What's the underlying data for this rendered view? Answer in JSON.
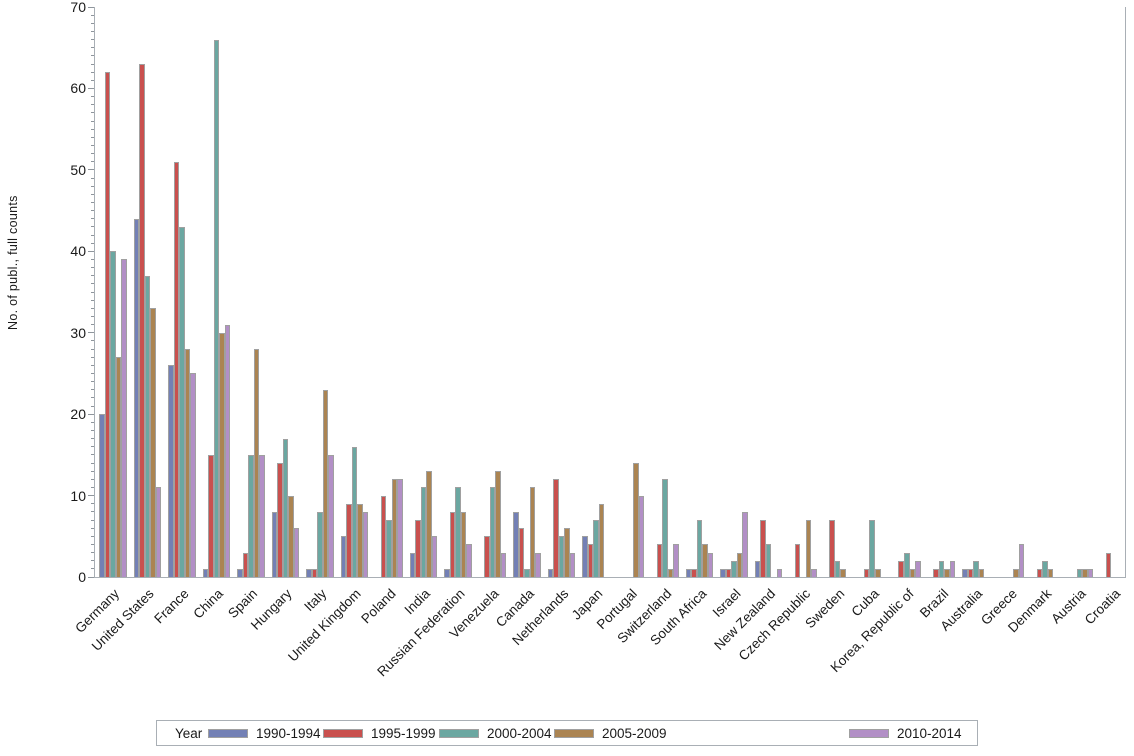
{
  "chart_data": {
    "type": "bar",
    "title": "",
    "xlabel": "",
    "ylabel": "No. of publ., full counts",
    "ylim": [
      0,
      70
    ],
    "ytick_step": 10,
    "ytick_minor_step": 1,
    "grid": "off",
    "legend_title": "Year",
    "legend_position": "bottom",
    "frame_color": "#a9afb5",
    "bar_border_color": "#a0a0a0",
    "categories": [
      "Germany",
      "United States",
      "France",
      "China",
      "Spain",
      "Hungary",
      "Italy",
      "United Kingdom",
      "Poland",
      "India",
      "Russian Federation",
      "Venezuela",
      "Canada",
      "Netherlands",
      "Japan",
      "Portugal",
      "Switzerland",
      "South Africa",
      "Israel",
      "New Zealand",
      "Czech Republic",
      "Sweden",
      "Cuba",
      "Korea, Republic of",
      "Brazil",
      "Australia",
      "Greece",
      "Denmark",
      "Austria",
      "Croatia"
    ],
    "series": [
      {
        "name": "1990-1994",
        "color": "#7380b5",
        "values": [
          20,
          44,
          26,
          1,
          1,
          8,
          1,
          5,
          0,
          3,
          1,
          0,
          8,
          1,
          5,
          0,
          0,
          1,
          1,
          2,
          0,
          0,
          0,
          0,
          0,
          1,
          0,
          0,
          0,
          0
        ]
      },
      {
        "name": "1995-1999",
        "color": "#c9504e",
        "values": [
          62,
          63,
          51,
          15,
          3,
          14,
          1,
          9,
          10,
          7,
          8,
          5,
          6,
          12,
          4,
          0,
          4,
          1,
          1,
          7,
          4,
          7,
          1,
          2,
          1,
          1,
          0,
          1,
          0,
          3
        ]
      },
      {
        "name": "2000-2004",
        "color": "#6ba7a1",
        "values": [
          40,
          37,
          43,
          66,
          15,
          17,
          8,
          16,
          7,
          11,
          11,
          11,
          1,
          5,
          7,
          0,
          12,
          7,
          2,
          4,
          0,
          2,
          7,
          3,
          2,
          2,
          0,
          2,
          1,
          0
        ]
      },
      {
        "name": "2005-2009",
        "color": "#ab8452",
        "values": [
          27,
          33,
          28,
          30,
          28,
          10,
          23,
          9,
          12,
          13,
          8,
          13,
          11,
          6,
          9,
          14,
          1,
          4,
          3,
          0,
          7,
          1,
          1,
          1,
          1,
          1,
          1,
          1,
          1,
          0
        ]
      },
      {
        "name": "2010-2014",
        "color": "#b28fc6",
        "values": [
          39,
          11,
          25,
          31,
          15,
          6,
          15,
          8,
          12,
          5,
          4,
          3,
          3,
          3,
          0,
          10,
          4,
          3,
          8,
          1,
          1,
          0,
          0,
          2,
          2,
          0,
          4,
          0,
          1,
          0
        ]
      }
    ],
    "yticks": [
      0,
      10,
      20,
      30,
      40,
      50,
      60,
      70
    ]
  }
}
